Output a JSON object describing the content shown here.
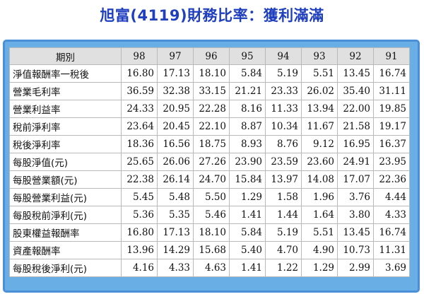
{
  "title": "旭富(4119)財務比率：獲利滿滿",
  "table": {
    "header_label": "期別",
    "years": [
      "98",
      "97",
      "96",
      "95",
      "94",
      "93",
      "92",
      "91"
    ],
    "rows": [
      {
        "label": "淨值報酬率一稅後",
        "values": [
          "16.80",
          "17.13",
          "18.10",
          "5.84",
          "5.19",
          "5.51",
          "13.45",
          "16.74"
        ]
      },
      {
        "label": "營業毛利率",
        "values": [
          "36.59",
          "32.38",
          "33.15",
          "21.21",
          "23.33",
          "26.02",
          "35.40",
          "31.11"
        ]
      },
      {
        "label": "營業利益率",
        "values": [
          "24.33",
          "20.95",
          "22.28",
          "8.16",
          "11.33",
          "13.94",
          "22.00",
          "19.85"
        ]
      },
      {
        "label": "稅前淨利率",
        "values": [
          "23.64",
          "20.45",
          "22.10",
          "8.87",
          "10.34",
          "11.67",
          "21.58",
          "19.17"
        ]
      },
      {
        "label": "稅後淨利率",
        "values": [
          "18.36",
          "16.56",
          "18.75",
          "8.93",
          "8.76",
          "9.12",
          "16.95",
          "16.37"
        ]
      },
      {
        "label": "每股淨值(元)",
        "values": [
          "25.65",
          "26.06",
          "27.26",
          "23.90",
          "23.59",
          "23.60",
          "24.91",
          "23.95"
        ]
      },
      {
        "label": "每股營業額(元)",
        "values": [
          "22.38",
          "26.14",
          "24.70",
          "15.84",
          "13.97",
          "14.08",
          "17.07",
          "22.36"
        ]
      },
      {
        "label": "每股營業利益(元)",
        "values": [
          "5.45",
          "5.48",
          "5.50",
          "1.29",
          "1.58",
          "1.96",
          "3.76",
          "4.44"
        ]
      },
      {
        "label": "每股稅前淨利(元)",
        "values": [
          "5.36",
          "5.35",
          "5.46",
          "1.41",
          "1.44",
          "1.64",
          "3.80",
          "4.33"
        ]
      },
      {
        "label": "股東權益報酬率",
        "values": [
          "16.80",
          "17.13",
          "18.10",
          "5.84",
          "5.19",
          "5.51",
          "13.45",
          "16.74"
        ]
      },
      {
        "label": "資產報酬率",
        "values": [
          "13.96",
          "14.29",
          "15.68",
          "5.40",
          "4.70",
          "4.90",
          "10.73",
          "11.31"
        ]
      },
      {
        "label": "每股稅後淨利(元)",
        "values": [
          "4.16",
          "4.33",
          "4.63",
          "1.41",
          "1.22",
          "1.29",
          "2.99",
          "3.69"
        ]
      }
    ]
  }
}
